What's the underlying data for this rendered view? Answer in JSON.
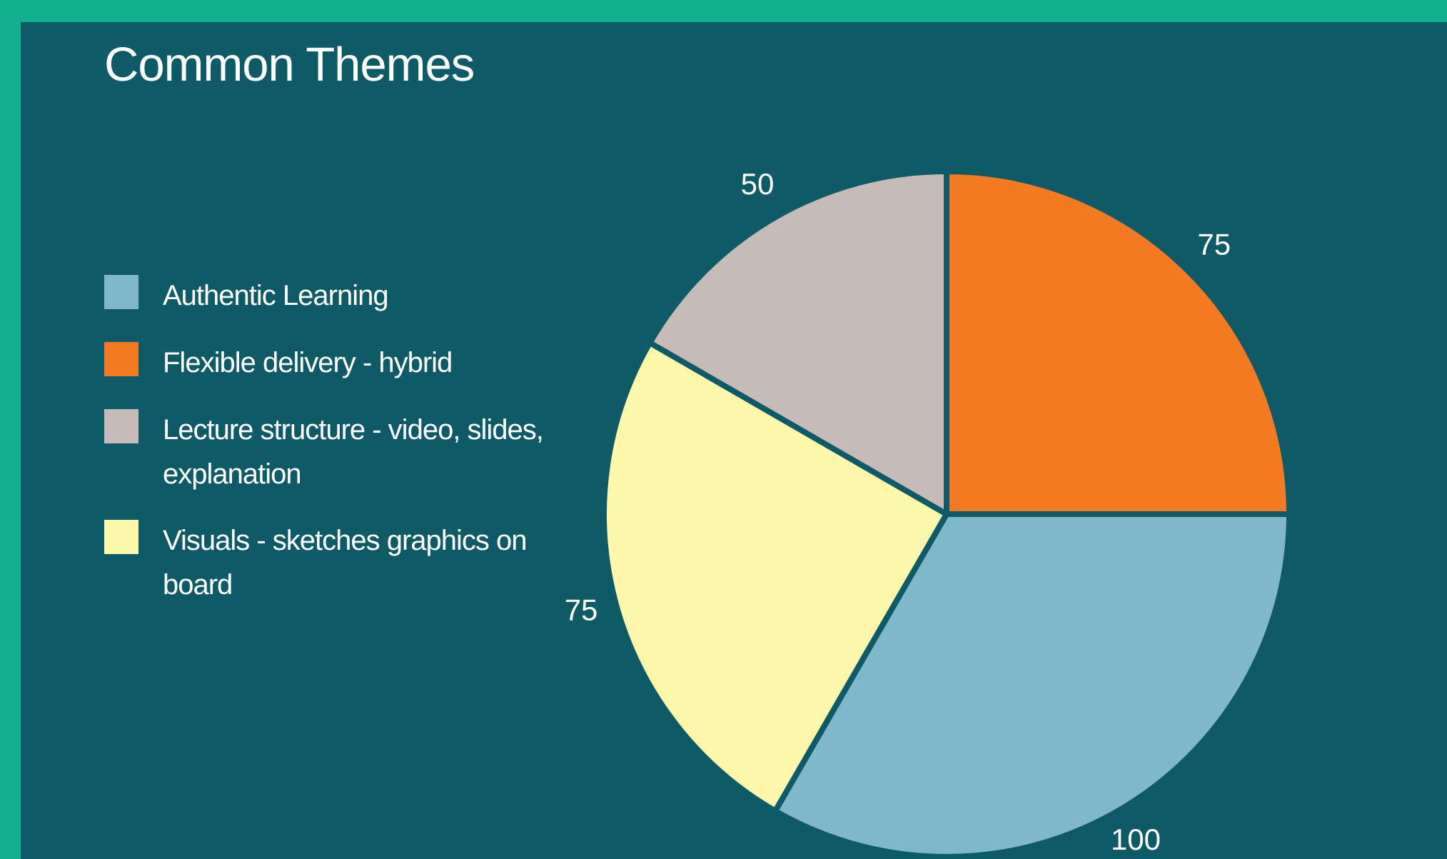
{
  "chart_data": {
    "type": "pie",
    "title": "Common Themes",
    "categories": [
      "Authentic Learning",
      "Flexible delivery - hybrid",
      "Lecture structure - video, slides, explanation",
      "Visuals - sketches graphics on board"
    ],
    "values": [
      100,
      75,
      50,
      75
    ],
    "colors": [
      "#7fb8ca",
      "#f47a22",
      "#c5bbb8",
      "#fdf7ab"
    ],
    "legend_position": "left",
    "data_labels": [
      "100",
      "75",
      "50",
      "75"
    ]
  },
  "colors": {
    "frame": "#13b08f",
    "background": "#0e5a66",
    "text": "#ffffff"
  }
}
